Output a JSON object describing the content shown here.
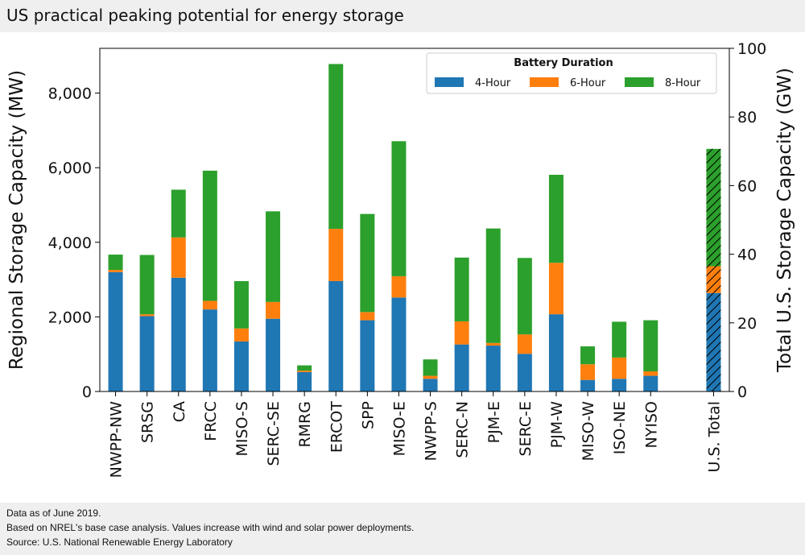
{
  "title": "US practical peaking potential for energy storage",
  "footer": {
    "line1": "Data as of June 2019.",
    "line2": "Based on NREL's base case analysis. Values increase with wind and solar power deployments.",
    "line3": "Source: U.S. National Renewable Energy Laboratory"
  },
  "colors": {
    "4-Hour": "#1f77b4",
    "6-Hour": "#ff7f0e",
    "8-Hour": "#2ca02c"
  },
  "chart_data": {
    "type": "bar",
    "stacked": true,
    "title": "",
    "ylabel": "Regional Storage Capacity (MW)",
    "y2label": "Total U.S. Storage Capacity (GW)",
    "ylim": [
      0,
      9200
    ],
    "y2lim": [
      0,
      100
    ],
    "yticks": [
      0,
      2000,
      4000,
      6000,
      8000
    ],
    "ytick_labels": [
      "0",
      "2,000",
      "4,000",
      "6,000",
      "8,000"
    ],
    "y2ticks": [
      0,
      20,
      40,
      60,
      80,
      100
    ],
    "legend_title": "Battery Duration",
    "legend_position": "top-right",
    "categories": [
      "NWPP-NW",
      "SRSG",
      "CA",
      "FRCC",
      "MISO-S",
      "SERC-SE",
      "RMRG",
      "ERCOT",
      "SPP",
      "MISO-E",
      "NWPP-S",
      "SERC-N",
      "PJM-E",
      "SERC-E",
      "PJM-W",
      "MISO-W",
      "ISO-NE",
      "NYISO"
    ],
    "series": [
      {
        "name": "4-Hour",
        "values": [
          3200,
          2020,
          3050,
          2200,
          1340,
          1950,
          520,
          2960,
          1910,
          2520,
          340,
          1260,
          1230,
          1010,
          2070,
          310,
          340,
          420
        ]
      },
      {
        "name": "6-Hour",
        "values": [
          60,
          50,
          1080,
          230,
          350,
          450,
          40,
          1400,
          220,
          570,
          80,
          620,
          70,
          520,
          1380,
          420,
          570,
          120
        ]
      },
      {
        "name": "8-Hour",
        "values": [
          410,
          1590,
          1280,
          3490,
          1270,
          2430,
          140,
          4420,
          2630,
          3620,
          440,
          1710,
          3070,
          2050,
          2360,
          480,
          960,
          1370
        ]
      }
    ],
    "total": {
      "category": "U.S. Total",
      "axis": "y2",
      "unit": "GW",
      "values": [
        {
          "name": "4-Hour",
          "value": 28.7
        },
        {
          "name": "6-Hour",
          "value": 7.8
        },
        {
          "name": "8-Hour",
          "value": 34.2
        }
      ],
      "hatched": true
    },
    "grid": false
  }
}
